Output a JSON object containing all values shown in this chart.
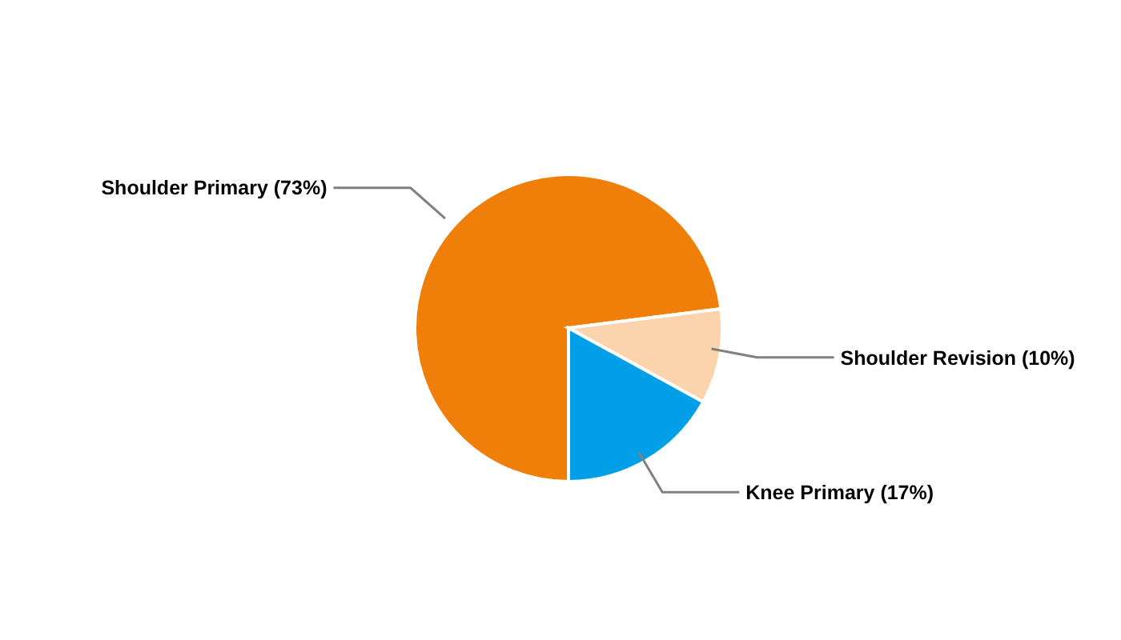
{
  "chart_data": {
    "type": "pie",
    "categories": [
      "Shoulder Primary (73%)",
      "Shoulder Revision (10%)",
      "Knee Primary (17%)"
    ],
    "values": [
      73,
      10,
      17
    ],
    "colors": [
      "#f07f09",
      "#fbd3ad",
      "#009fe8"
    ]
  }
}
